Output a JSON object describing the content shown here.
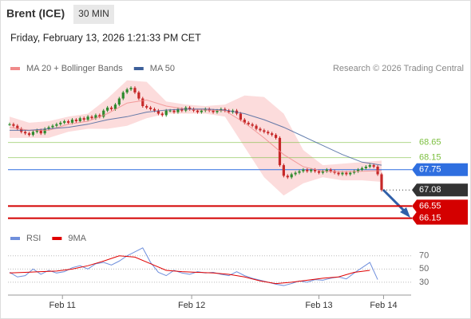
{
  "header": {
    "title": "Brent (ICE)",
    "timeframe": "30 MIN",
    "timestamp": "Friday, February 13, 2026 1:21:33 PM CET"
  },
  "chart_data": [
    {
      "type": "candlestick",
      "legend": [
        {
          "name": "MA 20 + Bollinger Bands",
          "color": "#f08a8a"
        },
        {
          "name": "MA 50",
          "color": "#3d5f9a"
        }
      ],
      "source": "Research © 2026 Trading Central",
      "up_color": "#2e8b2e",
      "down_color": "#c62828",
      "closes": [
        69.25,
        69.2,
        69.1,
        69.0,
        68.95,
        68.9,
        69.0,
        69.05,
        68.95,
        69.1,
        69.15,
        69.2,
        69.25,
        69.3,
        69.35,
        69.3,
        69.4,
        69.35,
        69.45,
        69.4,
        69.5,
        69.45,
        69.55,
        69.5,
        69.7,
        69.8,
        69.75,
        69.9,
        70.1,
        70.3,
        70.4,
        70.45,
        70.3,
        70.1,
        69.85,
        69.8,
        69.75,
        69.7,
        69.6,
        69.55,
        69.7,
        69.7,
        69.65,
        69.75,
        69.7,
        69.8,
        69.75,
        69.7,
        69.65,
        69.7,
        69.75,
        69.7,
        69.65,
        69.7,
        69.75,
        69.7,
        69.65,
        69.7,
        69.6,
        69.4,
        69.3,
        69.25,
        69.2,
        69.1,
        69.05,
        69.0,
        68.95,
        68.9,
        68.8,
        67.9,
        67.55,
        67.5,
        67.6,
        67.65,
        67.7,
        67.75,
        67.7,
        67.75,
        67.7,
        67.65,
        67.7,
        67.75,
        67.7,
        67.65,
        67.6,
        67.65,
        67.6,
        67.65,
        67.7,
        67.75,
        67.8,
        67.85,
        67.9,
        67.85,
        67.6,
        67.08
      ],
      "ma_x": [
        0,
        5,
        10,
        15,
        20,
        25,
        30,
        35,
        40,
        45,
        50,
        55,
        60,
        65,
        70,
        75,
        80,
        85,
        90,
        95
      ],
      "ma20": [
        69.15,
        69.05,
        69.05,
        69.25,
        69.35,
        69.6,
        69.95,
        70.05,
        69.85,
        69.75,
        69.72,
        69.7,
        69.3,
        68.8,
        68.25,
        67.85,
        67.7,
        67.68,
        67.7,
        67.72
      ],
      "ma50": [
        69.05,
        69.05,
        69.1,
        69.15,
        69.25,
        69.4,
        69.5,
        69.65,
        69.72,
        69.75,
        69.75,
        69.72,
        69.6,
        69.4,
        69.15,
        68.85,
        68.55,
        68.25,
        68.0,
        67.9
      ],
      "upper": [
        69.5,
        69.3,
        69.35,
        69.5,
        69.6,
        70.1,
        70.7,
        70.65,
        70.0,
        69.9,
        69.85,
        69.9,
        70.2,
        70.15,
        69.6,
        68.4,
        67.9,
        67.95,
        68.0,
        68.05
      ],
      "lower": [
        68.8,
        68.8,
        68.8,
        69.0,
        69.1,
        69.1,
        69.2,
        69.45,
        69.6,
        69.6,
        69.6,
        69.5,
        68.5,
        67.5,
        66.9,
        67.3,
        67.5,
        67.4,
        67.4,
        67.35
      ],
      "band_color": "#fbd3d3",
      "levels": [
        {
          "value": 68.65,
          "color": "#7cbf3f",
          "boxed": false,
          "dotted": false
        },
        {
          "value": 68.15,
          "color": "#7cbf3f",
          "boxed": false,
          "dotted": false
        },
        {
          "value": 67.75,
          "color": "#2f6fe0",
          "boxed": true,
          "dotted": false
        },
        {
          "value": 67.08,
          "color": "#333333",
          "boxed": true,
          "dotted": true
        },
        {
          "value": 66.55,
          "color": "#d40000",
          "boxed": true,
          "dotted": false
        },
        {
          "value": 66.15,
          "color": "#d40000",
          "boxed": true,
          "dotted": false
        }
      ],
      "ylim": [
        65.85,
        70.85
      ],
      "xlim": [
        0,
        95
      ],
      "xticks": [
        {
          "value": 13.5,
          "label": "Feb 11"
        },
        {
          "value": 46.5,
          "label": "Feb 12"
        },
        {
          "value": 79,
          "label": "Feb 13"
        },
        {
          "value": 95.5,
          "label": "Feb 14"
        }
      ]
    },
    {
      "type": "line",
      "series": [
        {
          "name": "RSI",
          "color": "#6f8fdc",
          "x": [
            0,
            2,
            4,
            6,
            8,
            10,
            12,
            14,
            16,
            18,
            20,
            22,
            24,
            26,
            28,
            30,
            32,
            34,
            36,
            38,
            40,
            42,
            44,
            46,
            48,
            50,
            52,
            54,
            56,
            58,
            60,
            62,
            64,
            66,
            68,
            70,
            72,
            74,
            76,
            78,
            80,
            82,
            84,
            86,
            88,
            90,
            92,
            94
          ],
          "values": [
            45,
            38,
            40,
            50,
            42,
            48,
            44,
            46,
            52,
            55,
            50,
            58,
            60,
            56,
            62,
            70,
            76,
            82,
            60,
            45,
            40,
            48,
            44,
            42,
            46,
            44,
            45,
            42,
            40,
            46,
            40,
            36,
            33,
            30,
            27,
            25,
            28,
            32,
            30,
            34,
            33,
            36,
            38,
            35,
            44,
            52,
            60,
            34
          ]
        },
        {
          "name": "9MA",
          "color": "#e00000",
          "x": [
            0,
            4,
            8,
            12,
            16,
            20,
            24,
            28,
            32,
            36,
            40,
            44,
            48,
            52,
            56,
            60,
            64,
            68,
            72,
            76,
            80,
            84,
            88,
            92
          ],
          "values": [
            44,
            45,
            46,
            47,
            50,
            55,
            62,
            70,
            68,
            58,
            48,
            46,
            45,
            44,
            42,
            38,
            32,
            28,
            30,
            33,
            36,
            38,
            45,
            48
          ]
        }
      ],
      "ylim": [
        13,
        89
      ],
      "yticks": [
        70,
        50,
        30
      ],
      "xlim": [
        0,
        95
      ]
    }
  ]
}
